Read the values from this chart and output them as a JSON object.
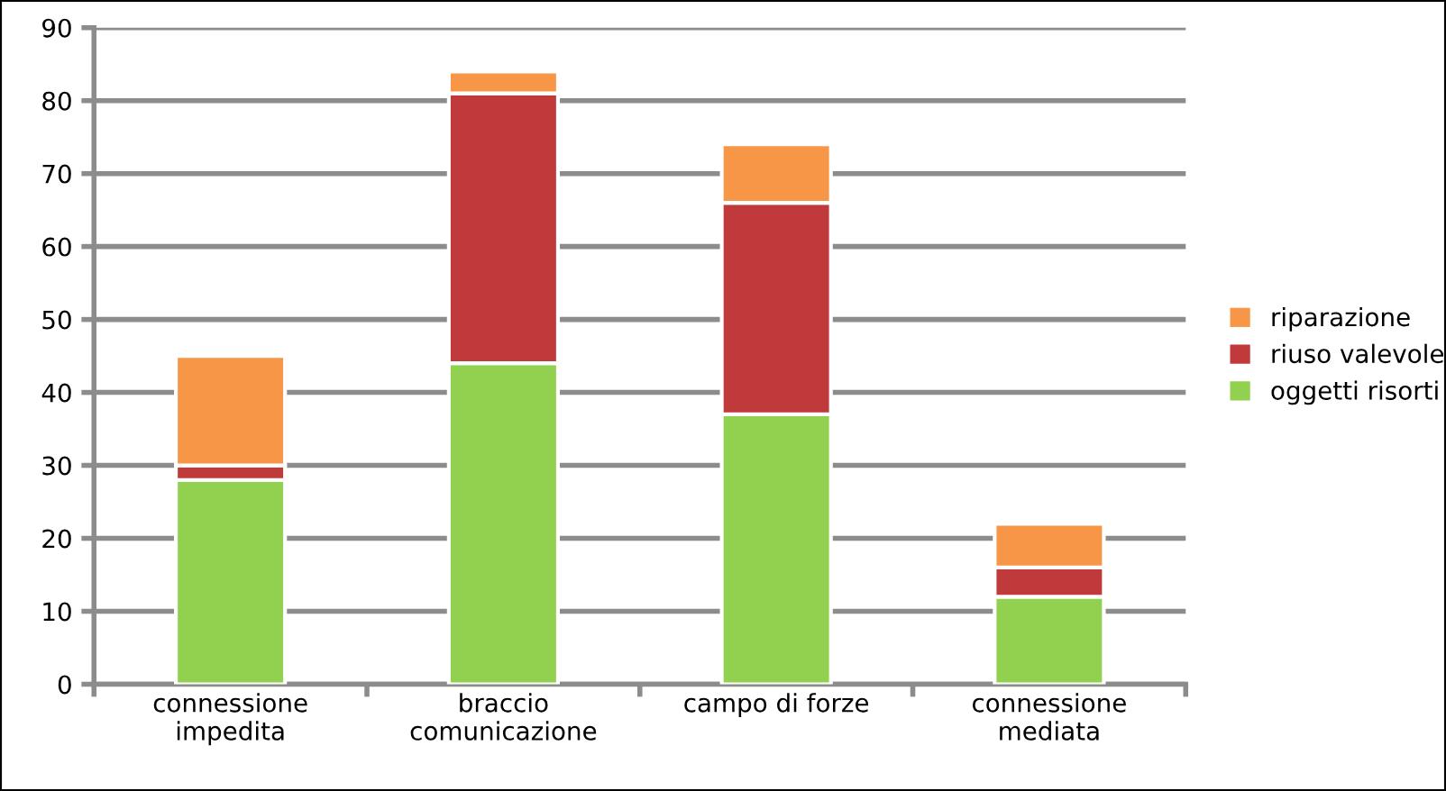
{
  "chart_data": {
    "type": "bar",
    "stacked": true,
    "categories": [
      "connessione\nimpedita",
      "braccio\ncomunicazione",
      "campo di forze",
      "connessione\nmediata"
    ],
    "series": [
      {
        "name": "oggetti risorti",
        "color": "#92d050",
        "values": [
          28,
          44,
          37,
          12
        ]
      },
      {
        "name": "riuso valevole",
        "color": "#c0393b",
        "values": [
          2,
          37,
          29,
          4
        ]
      },
      {
        "name": "riparazione",
        "color": "#f79646",
        "values": [
          15,
          3,
          8,
          6
        ]
      }
    ],
    "ylim": [
      0,
      90
    ],
    "yticks": [
      0,
      10,
      20,
      30,
      40,
      50,
      60,
      70,
      80,
      90
    ],
    "grid": "y",
    "legend": "right"
  }
}
